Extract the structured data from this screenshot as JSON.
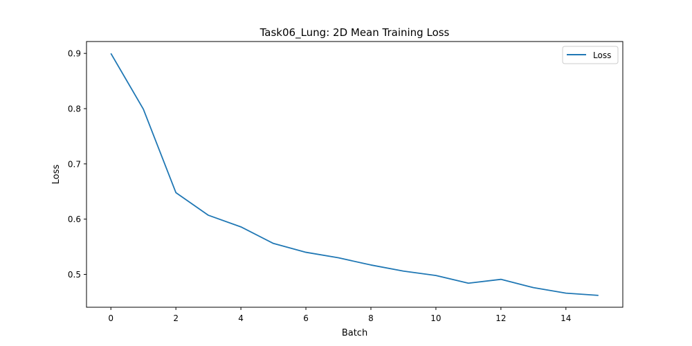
{
  "chart_data": {
    "type": "line",
    "title": "Task06_Lung: 2D Mean Training Loss",
    "xlabel": "Batch",
    "ylabel": "Loss",
    "x": [
      0,
      1,
      2,
      3,
      4,
      5,
      6,
      7,
      8,
      9,
      10,
      11,
      12,
      13,
      14,
      15
    ],
    "series": [
      {
        "name": "Loss",
        "color": "#1f77b4",
        "values": [
          0.9,
          0.799,
          0.648,
          0.607,
          0.586,
          0.556,
          0.54,
          0.53,
          0.517,
          0.506,
          0.498,
          0.484,
          0.491,
          0.476,
          0.466,
          0.462
        ]
      }
    ],
    "xlim": [
      -0.75,
      15.75
    ],
    "ylim": [
      0.4405,
      0.9215
    ],
    "xticks": [
      0,
      2,
      4,
      6,
      8,
      10,
      12,
      14
    ],
    "xtick_labels": [
      "0",
      "2",
      "4",
      "6",
      "8",
      "10",
      "12",
      "14"
    ],
    "yticks": [
      0.5,
      0.6,
      0.7,
      0.8,
      0.9
    ],
    "ytick_labels": [
      "0.5",
      "0.6",
      "0.7",
      "0.8",
      "0.9"
    ],
    "legend_position": "top-right",
    "grid": false
  }
}
